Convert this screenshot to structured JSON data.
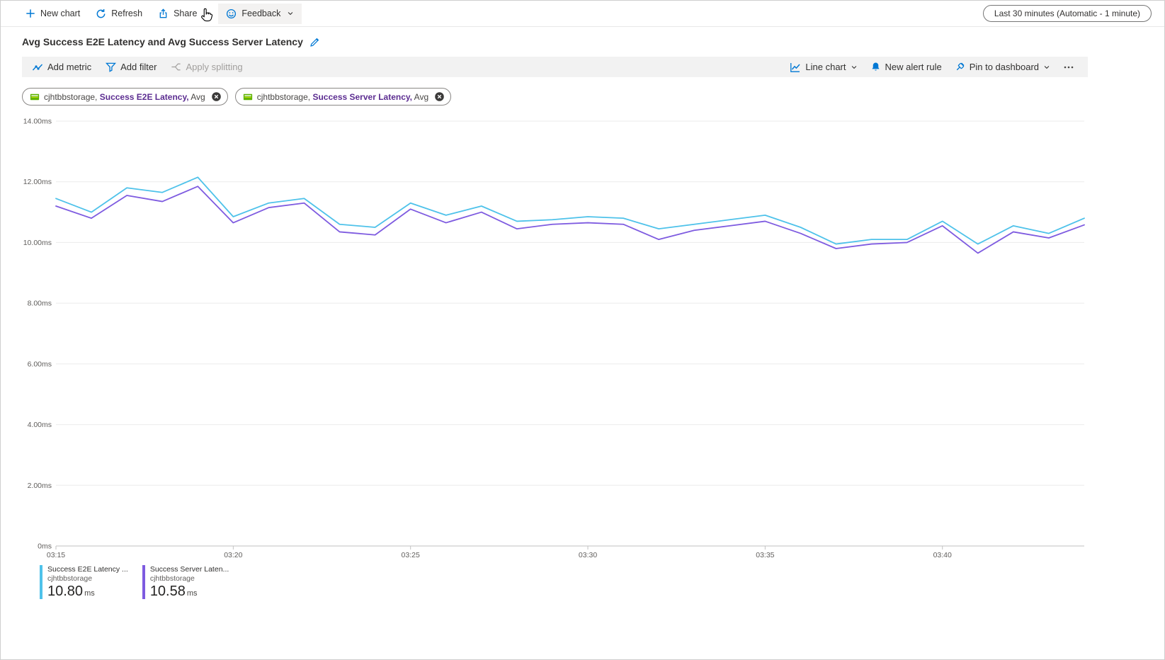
{
  "accent_color": "#0078d4",
  "toolbar": {
    "new_chart": "New chart",
    "refresh": "Refresh",
    "share": "Share",
    "feedback": "Feedback",
    "time_range": "Last 30 minutes (Automatic - 1 minute)"
  },
  "title": "Avg Success E2E Latency and Avg Success Server Latency",
  "chart_toolbar": {
    "add_metric": "Add metric",
    "add_filter": "Add filter",
    "apply_splitting": "Apply splitting",
    "chart_type": "Line chart",
    "new_alert_rule": "New alert rule",
    "pin_to_dashboard": "Pin to dashboard"
  },
  "metric_chips": [
    {
      "resource": "cjhtbbstorage,",
      "metric": "Success E2E Latency,",
      "aggregation": "Avg"
    },
    {
      "resource": "cjhtbbstorage,",
      "metric": "Success Server Latency,",
      "aggregation": "Avg"
    }
  ],
  "legend": [
    {
      "name": "Success E2E Latency ...",
      "resource": "cjhtbbstorage",
      "value": "10.80",
      "unit": "ms",
      "color": "#4ec2ea"
    },
    {
      "name": "Success Server Laten...",
      "resource": "cjhtbbstorage",
      "value": "10.58",
      "unit": "ms",
      "color": "#7e5be0"
    }
  ],
  "chart_data": {
    "type": "line",
    "title": "Avg Success E2E Latency and Avg Success Server Latency",
    "xlabel": "",
    "ylabel": "",
    "unit": "ms",
    "ylim": [
      0,
      14
    ],
    "grid": true,
    "legend_position": "bottom-left",
    "x": [
      "03:15",
      "03:16",
      "03:17",
      "03:18",
      "03:19",
      "03:20",
      "03:21",
      "03:22",
      "03:23",
      "03:24",
      "03:25",
      "03:26",
      "03:27",
      "03:28",
      "03:29",
      "03:30",
      "03:31",
      "03:32",
      "03:33",
      "03:34",
      "03:35",
      "03:36",
      "03:37",
      "03:38",
      "03:39",
      "03:40",
      "03:41",
      "03:42",
      "03:43",
      "03:44"
    ],
    "yticks": [
      {
        "value": 0,
        "label": "0ms"
      },
      {
        "value": 2,
        "label": "2.00ms"
      },
      {
        "value": 4,
        "label": "4.00ms"
      },
      {
        "value": 6,
        "label": "6.00ms"
      },
      {
        "value": 8,
        "label": "8.00ms"
      },
      {
        "value": 10,
        "label": "10.00ms"
      },
      {
        "value": 12,
        "label": "12.00ms"
      },
      {
        "value": 14,
        "label": "14.00ms"
      }
    ],
    "xticks": [
      {
        "index": 0,
        "label": "03:15"
      },
      {
        "index": 5,
        "label": "03:20"
      },
      {
        "index": 10,
        "label": "03:25"
      },
      {
        "index": 15,
        "label": "03:30"
      },
      {
        "index": 20,
        "label": "03:35"
      },
      {
        "index": 25,
        "label": "03:40"
      }
    ],
    "series": [
      {
        "name": "Success E2E Latency (Avg), cjhtbbstorage",
        "color": "#4ec2ea",
        "values": [
          11.45,
          11.0,
          11.8,
          11.65,
          12.15,
          10.85,
          11.3,
          11.45,
          10.6,
          10.5,
          11.3,
          10.9,
          11.2,
          10.7,
          10.75,
          10.85,
          10.8,
          10.45,
          10.6,
          10.75,
          10.9,
          10.5,
          9.95,
          10.1,
          10.1,
          10.7,
          9.95,
          10.55,
          10.3,
          10.8
        ]
      },
      {
        "name": "Success Server Latency (Avg), cjhtbbstorage",
        "color": "#7e5be0",
        "values": [
          11.2,
          10.8,
          11.55,
          11.35,
          11.85,
          10.65,
          11.15,
          11.3,
          10.35,
          10.25,
          11.1,
          10.65,
          11.0,
          10.45,
          10.6,
          10.65,
          10.6,
          10.1,
          10.4,
          10.55,
          10.7,
          10.3,
          9.8,
          9.95,
          10.0,
          10.55,
          9.65,
          10.35,
          10.15,
          10.58
        ]
      }
    ]
  }
}
